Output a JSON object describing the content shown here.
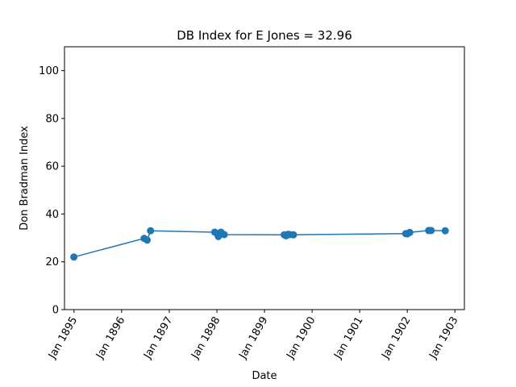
{
  "chart_data": {
    "type": "line",
    "title": "DB Index for E Jones = 32.96",
    "xlabel": "Date",
    "ylabel": "Don Bradman Index",
    "ylim": [
      0,
      110
    ],
    "xlim": [
      "1894-10-20",
      "1903-03-15"
    ],
    "yticks": [
      0,
      20,
      40,
      60,
      80,
      100
    ],
    "xticks": [
      {
        "date": "1895-01-01",
        "label": "Jan 1895"
      },
      {
        "date": "1896-01-01",
        "label": "Jan 1896"
      },
      {
        "date": "1897-01-01",
        "label": "Jan 1897"
      },
      {
        "date": "1898-01-01",
        "label": "Jan 1898"
      },
      {
        "date": "1899-01-01",
        "label": "Jan 1899"
      },
      {
        "date": "1900-01-01",
        "label": "Jan 1900"
      },
      {
        "date": "1901-01-01",
        "label": "Jan 1901"
      },
      {
        "date": "1902-01-01",
        "label": "Jan 1902"
      },
      {
        "date": "1903-01-01",
        "label": "Jan 1903"
      }
    ],
    "grid": false,
    "series": [
      {
        "color": "#1f77b4",
        "points": [
          {
            "x": "1894-12-31",
            "y": 22.0
          },
          {
            "x": "1896-06-22",
            "y": 29.8
          },
          {
            "x": "1896-07-15",
            "y": 29.1
          },
          {
            "x": "1896-08-10",
            "y": 33.0
          },
          {
            "x": "1897-12-15",
            "y": 32.4
          },
          {
            "x": "1898-01-03",
            "y": 31.8
          },
          {
            "x": "1898-01-12",
            "y": 30.6
          },
          {
            "x": "1898-02-01",
            "y": 32.4
          },
          {
            "x": "1898-02-26",
            "y": 31.4
          },
          {
            "x": "1899-06-01",
            "y": 31.3
          },
          {
            "x": "1899-06-15",
            "y": 30.9
          },
          {
            "x": "1899-06-30",
            "y": 31.5
          },
          {
            "x": "1899-07-15",
            "y": 31.4
          },
          {
            "x": "1899-08-11",
            "y": 31.3
          },
          {
            "x": "1901-12-20",
            "y": 31.8
          },
          {
            "x": "1902-01-02",
            "y": 31.7
          },
          {
            "x": "1902-01-20",
            "y": 32.3
          },
          {
            "x": "1902-06-14",
            "y": 33.1
          },
          {
            "x": "1902-07-03",
            "y": 33.1
          },
          {
            "x": "1902-10-19",
            "y": 33.0
          }
        ]
      }
    ]
  }
}
